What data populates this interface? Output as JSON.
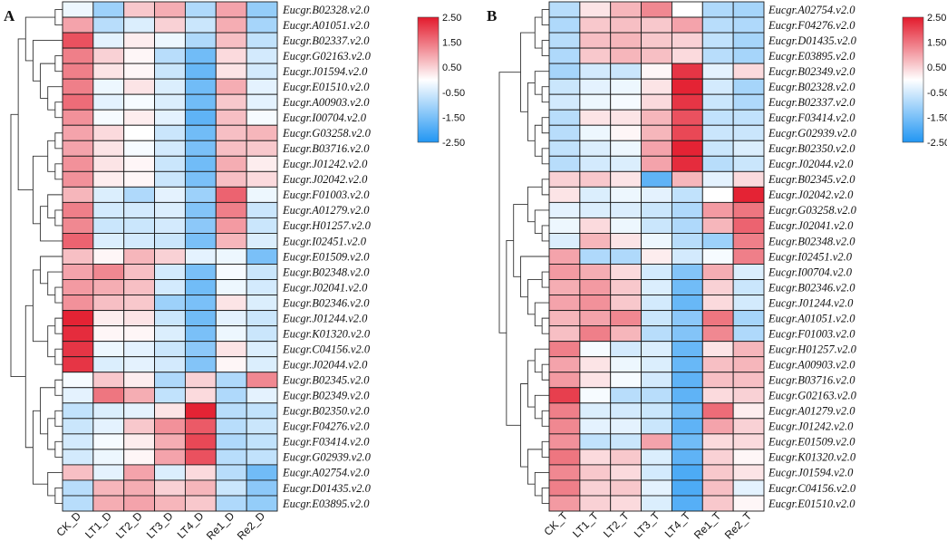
{
  "chart_data": [
    {
      "type": "heatmap",
      "panel_label": "A",
      "columns": [
        "CK_D",
        "LT1_D",
        "LT2_D",
        "LT3_D",
        "LT4_D",
        "Re1_D",
        "Re2_D"
      ],
      "rows": [
        "Eucgr.B02328.v2.0",
        "Eucgr.A01051.v2.0",
        "Eucgr.B02337.v2.0",
        "Eucgr.G02163.v2.0",
        "Eucgr.J01594.v2.0",
        "Eucgr.E01510.v2.0",
        "Eucgr.A00903.v2.0",
        "Eucgr.I00704.v2.0",
        "Eucgr.G03258.v2.0",
        "Eucgr.B03716.v2.0",
        "Eucgr.J01242.v2.0",
        "Eucgr.J02042.v2.0",
        "Eucgr.F01003.v2.0",
        "Eucgr.A01279.v2.0",
        "Eucgr.H01257.v2.0",
        "Eucgr.I02451.v2.0",
        "Eucgr.E01509.v2.0",
        "Eucgr.B02348.v2.0",
        "Eucgr.J02041.v2.0",
        "Eucgr.B02346.v2.0",
        "Eucgr.J01244.v2.0",
        "Eucgr.K01320.v2.0",
        "Eucgr.C04156.v2.0",
        "Eucgr.J02044.v2.0",
        "Eucgr.B02345.v2.0",
        "Eucgr.B02349.v2.0",
        "Eucgr.B02350.v2.0",
        "Eucgr.F04276.v2.0",
        "Eucgr.F03414.v2.0",
        "Eucgr.G02939.v2.0",
        "Eucgr.A02754.v2.0",
        "Eucgr.D01435.v2.0",
        "Eucgr.E03895.v2.0"
      ],
      "values": [
        [
          -0.2,
          -1.1,
          0.6,
          0.9,
          -0.9,
          1.0,
          -1.2
        ],
        [
          1.0,
          -0.8,
          -0.4,
          0.5,
          -0.6,
          0.9,
          -1.0
        ],
        [
          1.9,
          -0.3,
          0.2,
          -0.2,
          -0.9,
          0.7,
          -0.7
        ],
        [
          1.4,
          0.5,
          0.1,
          -0.8,
          -1.6,
          0.4,
          -0.5
        ],
        [
          1.4,
          0.3,
          0.1,
          -0.6,
          -1.7,
          0.3,
          -0.5
        ],
        [
          1.4,
          -0.2,
          0.3,
          -0.4,
          -1.6,
          0.9,
          -0.3
        ],
        [
          1.6,
          -0.3,
          -0.1,
          -0.4,
          -1.6,
          0.6,
          -0.3
        ],
        [
          1.2,
          -0.1,
          0.2,
          -0.3,
          -1.8,
          0.7,
          -0.1
        ],
        [
          1.0,
          0.4,
          0.0,
          -0.6,
          -1.6,
          0.7,
          0.8
        ],
        [
          1.0,
          0.3,
          -0.1,
          -0.5,
          -1.5,
          0.7,
          0.6
        ],
        [
          1.2,
          0.3,
          0.1,
          -0.6,
          -1.6,
          0.9,
          0.2
        ],
        [
          1.2,
          0.2,
          0.1,
          -0.6,
          -1.5,
          0.7,
          0.4
        ],
        [
          0.8,
          -0.4,
          -0.9,
          -0.3,
          -1.1,
          1.7,
          -0.2
        ],
        [
          1.4,
          -0.5,
          -0.5,
          -0.4,
          -1.4,
          1.4,
          -0.6
        ],
        [
          1.3,
          -0.6,
          -0.6,
          -0.5,
          -1.3,
          1.1,
          -0.6
        ],
        [
          1.7,
          -0.4,
          -0.5,
          -0.6,
          -1.5,
          0.8,
          -0.4
        ],
        [
          0.7,
          0.1,
          0.8,
          0.5,
          -0.3,
          -0.2,
          -1.5
        ],
        [
          1.0,
          1.3,
          0.7,
          -0.5,
          -1.5,
          -0.1,
          -0.6
        ],
        [
          1.1,
          0.9,
          0.7,
          -0.5,
          -1.6,
          -0.2,
          -0.5
        ],
        [
          1.2,
          0.7,
          0.6,
          -1.1,
          -1.5,
          0.3,
          -0.4
        ],
        [
          2.4,
          0.2,
          0.3,
          -0.6,
          -1.6,
          -0.3,
          -0.6
        ],
        [
          2.3,
          0.1,
          0.1,
          -0.4,
          -1.5,
          -0.2,
          -0.6
        ],
        [
          2.2,
          -0.2,
          -0.3,
          -0.6,
          -1.3,
          0.3,
          -0.4
        ],
        [
          2.2,
          -0.4,
          -0.3,
          -0.5,
          -1.4,
          0.1,
          -0.4
        ],
        [
          -0.1,
          0.6,
          0.2,
          -0.9,
          0.5,
          -0.9,
          1.3
        ],
        [
          -0.3,
          1.5,
          0.9,
          -0.7,
          0.4,
          -0.9,
          -0.3
        ],
        [
          -0.7,
          -0.4,
          -0.3,
          0.3,
          2.4,
          -0.8,
          -0.7
        ],
        [
          -0.6,
          -0.3,
          0.6,
          1.2,
          1.8,
          -0.8,
          -0.6
        ],
        [
          -0.5,
          -0.1,
          0.2,
          0.9,
          2.0,
          -0.9,
          -0.7
        ],
        [
          -0.5,
          -0.2,
          0.1,
          1.0,
          1.9,
          -0.8,
          -0.7
        ],
        [
          0.7,
          -0.3,
          1.0,
          -0.4,
          0.4,
          -0.8,
          -1.6
        ],
        [
          -0.8,
          0.8,
          0.9,
          0.5,
          0.8,
          -0.6,
          -1.3
        ],
        [
          -0.8,
          0.9,
          1.0,
          0.8,
          0.6,
          -0.9,
          -1.2
        ]
      ],
      "legend_ticks": [
        "2.50",
        "1.50",
        "0.50",
        "-0.50",
        "-1.50",
        "-2.50"
      ],
      "color_range": [
        -2.5,
        2.5
      ],
      "colors": {
        "low": "#2196f3",
        "mid": "#ffffff",
        "high": "#e31a2c"
      }
    },
    {
      "type": "heatmap",
      "panel_label": "B",
      "columns": [
        "CK_T",
        "LT1_T",
        "LT2_T",
        "LT3_T",
        "LT4_T",
        "Re1_T",
        "Re2_T"
      ],
      "rows": [
        "Eucgr.A02754.v2.0",
        "Eucgr.F04276.v2.0",
        "Eucgr.D01435.v2.0",
        "Eucgr.E03895.v2.0",
        "Eucgr.B02349.v2.0",
        "Eucgr.B02328.v2.0",
        "Eucgr.B02337.v2.0",
        "Eucgr.F03414.v2.0",
        "Eucgr.G02939.v2.0",
        "Eucgr.B02350.v2.0",
        "Eucgr.J02044.v2.0",
        "Eucgr.B02345.v2.0",
        "Eucgr.J02042.v2.0",
        "Eucgr.G03258.v2.0",
        "Eucgr.J02041.v2.0",
        "Eucgr.B02348.v2.0",
        "Eucgr.I02451.v2.0",
        "Eucgr.I00704.v2.0",
        "Eucgr.B02346.v2.0",
        "Eucgr.J01244.v2.0",
        "Eucgr.A01051.v2.0",
        "Eucgr.F01003.v2.0",
        "Eucgr.H01257.v2.0",
        "Eucgr.A00903.v2.0",
        "Eucgr.B03716.v2.0",
        "Eucgr.G02163.v2.0",
        "Eucgr.A01279.v2.0",
        "Eucgr.J01242.v2.0",
        "Eucgr.E01509.v2.0",
        "Eucgr.K01320.v2.0",
        "Eucgr.J01594.v2.0",
        "Eucgr.C04156.v2.0",
        "Eucgr.E01510.v2.0"
      ],
      "values": [
        [
          -0.8,
          0.3,
          0.8,
          1.3,
          0.0,
          -0.9,
          -1.0
        ],
        [
          -0.9,
          0.6,
          0.7,
          0.6,
          1.0,
          -0.8,
          -0.9
        ],
        [
          -0.8,
          0.7,
          0.8,
          0.6,
          0.5,
          -0.7,
          -1.0
        ],
        [
          -0.9,
          0.6,
          0.8,
          0.7,
          0.4,
          -0.8,
          -1.0
        ],
        [
          -1.0,
          -0.5,
          -0.6,
          0.1,
          2.2,
          -0.3,
          0.4
        ],
        [
          -0.6,
          -0.3,
          -0.2,
          0.3,
          2.4,
          -0.5,
          -1.0
        ],
        [
          -0.5,
          -0.2,
          -0.1,
          0.4,
          2.2,
          -0.6,
          -0.9
        ],
        [
          -0.8,
          0.3,
          0.3,
          0.8,
          1.9,
          -0.7,
          -0.7
        ],
        [
          -0.8,
          -0.2,
          0.1,
          0.8,
          2.0,
          -0.6,
          -0.6
        ],
        [
          -0.7,
          -0.4,
          -0.2,
          1.0,
          2.4,
          -0.6,
          -0.4
        ],
        [
          -0.8,
          -0.5,
          -0.4,
          1.0,
          2.3,
          -0.8,
          -0.6
        ],
        [
          0.5,
          0.6,
          0.3,
          -1.8,
          0.8,
          -0.3,
          0.4
        ],
        [
          0.3,
          -0.4,
          -0.2,
          -0.3,
          -0.7,
          0.0,
          2.4
        ],
        [
          -0.3,
          -0.4,
          -0.4,
          -0.6,
          -0.9,
          1.1,
          1.5
        ],
        [
          -0.2,
          0.4,
          -0.2,
          -0.6,
          -0.9,
          0.8,
          1.7
        ],
        [
          -0.4,
          0.8,
          0.3,
          -0.2,
          -0.8,
          -1.1,
          1.4
        ],
        [
          1.0,
          -0.9,
          -0.9,
          0.2,
          -0.5,
          -0.1,
          1.4
        ],
        [
          1.1,
          0.9,
          0.4,
          -0.5,
          -1.4,
          0.9,
          -0.4
        ],
        [
          0.9,
          1.1,
          0.6,
          -0.4,
          -1.6,
          0.5,
          -0.6
        ],
        [
          1.0,
          1.2,
          0.6,
          -0.5,
          -1.7,
          0.4,
          -0.5
        ],
        [
          0.8,
          1.0,
          1.3,
          -0.6,
          -1.3,
          1.5,
          -1.0
        ],
        [
          0.7,
          1.4,
          0.8,
          -0.8,
          -1.4,
          1.3,
          -0.9
        ],
        [
          1.4,
          -0.1,
          -0.5,
          -0.4,
          -1.7,
          0.3,
          0.8
        ],
        [
          1.0,
          0.3,
          -0.2,
          -0.4,
          -1.7,
          0.7,
          0.8
        ],
        [
          1.1,
          0.3,
          -0.1,
          -0.5,
          -1.8,
          0.7,
          0.7
        ],
        [
          2.1,
          -0.1,
          -0.8,
          -0.8,
          -1.8,
          0.4,
          0.5
        ],
        [
          1.4,
          -0.4,
          -0.5,
          -0.6,
          -1.6,
          1.6,
          0.2
        ],
        [
          1.3,
          -0.3,
          -0.3,
          -0.6,
          -1.8,
          1.0,
          0.5
        ],
        [
          1.2,
          -0.7,
          -0.6,
          1.0,
          -1.6,
          0.4,
          0.4
        ],
        [
          1.5,
          0.4,
          0.6,
          -0.4,
          -1.8,
          0.5,
          0.1
        ],
        [
          1.3,
          0.6,
          0.4,
          -0.5,
          -2.0,
          0.6,
          0.3
        ],
        [
          1.4,
          0.5,
          0.6,
          -0.3,
          -2.0,
          0.7,
          -0.3
        ],
        [
          1.1,
          0.5,
          0.4,
          -0.4,
          -1.9,
          0.6,
          0.1
        ]
      ],
      "legend_ticks": [
        "2.50",
        "1.50",
        "0.50",
        "-0.50",
        "-1.50",
        "-2.50"
      ],
      "color_range": [
        -2.5,
        2.5
      ],
      "colors": {
        "low": "#2196f3",
        "mid": "#ffffff",
        "high": "#e31a2c"
      }
    }
  ]
}
